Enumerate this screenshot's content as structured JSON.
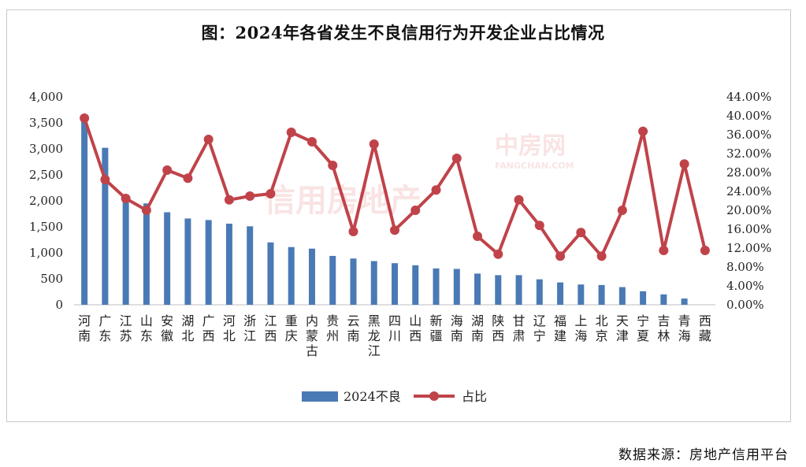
{
  "title": "图：2024年各省发生不良信用行为开发企业占比情况",
  "source": "数据来源：房地产信用平台",
  "watermarks": {
    "left": "信用房地产",
    "right": "中房网",
    "right_sub": "FANGCHAN.COM"
  },
  "colors": {
    "bar": "#4a7ab5",
    "line": "#c0434a",
    "axis": "#bfbfbf"
  },
  "chart_data": {
    "type": "bar+line",
    "categories": [
      "河南",
      "广东",
      "江苏",
      "山东",
      "安徽",
      "湖北",
      "广西",
      "河北",
      "浙江",
      "江西",
      "重庆",
      "内蒙古",
      "贵州",
      "云南",
      "黑龙江",
      "四川",
      "山西",
      "新疆",
      "海南",
      "湖南",
      "陕西",
      "甘肃",
      "辽宁",
      "福建",
      "上海",
      "北京",
      "天津",
      "宁夏",
      "吉林",
      "青海",
      "西藏"
    ],
    "series": [
      {
        "name": "2024不良",
        "axis": "left",
        "type": "bar",
        "values": [
          3550,
          3020,
          2020,
          1950,
          1780,
          1660,
          1630,
          1560,
          1510,
          1200,
          1110,
          1080,
          940,
          890,
          840,
          800,
          760,
          700,
          690,
          600,
          570,
          570,
          490,
          430,
          390,
          380,
          340,
          260,
          200,
          120,
          0
        ]
      },
      {
        "name": "占比",
        "axis": "right",
        "type": "line",
        "values": [
          39.5,
          26.5,
          22.5,
          20.0,
          28.5,
          26.8,
          35.0,
          22.2,
          23.0,
          23.5,
          36.5,
          34.5,
          29.5,
          15.5,
          34.0,
          15.8,
          20.0,
          24.3,
          31.0,
          14.5,
          10.7,
          22.2,
          16.8,
          10.3,
          15.3,
          10.3,
          20.0,
          36.7,
          11.5,
          29.8,
          11.5
        ]
      }
    ],
    "y_left": {
      "ylim": [
        0,
        4000
      ],
      "ticks": [
        "0",
        "500",
        "1,000",
        "1,500",
        "2,000",
        "2,500",
        "3,000",
        "3,500",
        "4,000"
      ]
    },
    "y_right": {
      "ylim": [
        0,
        44
      ],
      "ticks": [
        "0.00%",
        "4.00%",
        "8.00%",
        "12.00%",
        "16.00%",
        "20.00%",
        "24.00%",
        "28.00%",
        "32.00%",
        "36.00%",
        "40.00%",
        "44.00%"
      ]
    },
    "grid": false,
    "legend": "bottom-center"
  }
}
